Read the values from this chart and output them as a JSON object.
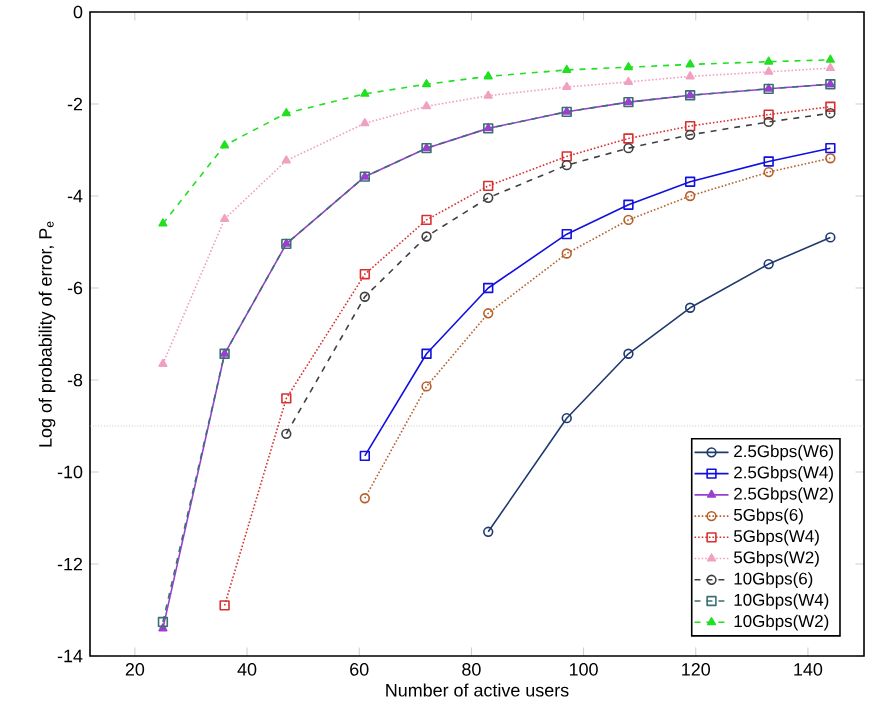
{
  "chart_data": {
    "type": "line",
    "xlabel": "Number of active users",
    "ylabel": "Log of probability of error, P$_{e}$",
    "x": [
      25,
      36,
      47,
      61,
      72,
      83,
      97,
      108,
      119,
      133,
      144
    ],
    "xlim": [
      12,
      150
    ],
    "xticks": [
      20,
      40,
      60,
      80,
      100,
      120,
      140
    ],
    "ylim": [
      -14,
      0
    ],
    "yticks": [
      -14,
      -12,
      -10,
      -8,
      -6,
      -4,
      -2,
      0
    ],
    "legend": "bottom right",
    "ref_lines": [
      {
        "axis": "y",
        "value": -9,
        "color": "#aaaaaa",
        "line_style": "dotted"
      }
    ],
    "series": [
      {
        "name": "2.5Gbps(W6)",
        "color": "#1f3a6e",
        "marker": "circle",
        "line_style": "solid",
        "values": [
          null,
          null,
          null,
          null,
          null,
          -11.3,
          -8.83,
          -7.43,
          -6.43,
          -5.48,
          -4.9
        ]
      },
      {
        "name": "2.5Gbps(W4)",
        "color": "#1010e0",
        "marker": "square",
        "line_style": "solid",
        "values": [
          null,
          null,
          null,
          -9.65,
          -7.43,
          -6.0,
          -4.83,
          -4.19,
          -3.69,
          -3.25,
          -2.96
        ]
      },
      {
        "name": "2.5Gbps(W2)",
        "color": "#9a40d0",
        "marker": "triangle",
        "line_style": "solid",
        "values": [
          -13.4,
          -7.43,
          -5.04,
          -3.58,
          -2.96,
          -2.53,
          -2.17,
          -1.96,
          -1.81,
          -1.67,
          -1.57
        ]
      },
      {
        "name": "5Gbps(6)",
        "color": "#b5602a",
        "marker": "circle",
        "line_style": "dotted",
        "values": [
          null,
          null,
          null,
          -10.57,
          -8.14,
          -6.55,
          -5.25,
          -4.52,
          -4.0,
          -3.48,
          -3.18
        ]
      },
      {
        "name": "5Gbps(W4)",
        "color": "#d83030",
        "marker": "square",
        "line_style": "dotted",
        "values": [
          null,
          -12.9,
          -8.4,
          -5.7,
          -4.52,
          -3.78,
          -3.14,
          -2.75,
          -2.48,
          -2.23,
          -2.06
        ]
      },
      {
        "name": "5Gbps(W2)",
        "color": "#f0a0c0",
        "marker": "triangle",
        "line_style": "dotted",
        "values": [
          -7.65,
          -4.5,
          -3.23,
          -2.42,
          -2.05,
          -1.82,
          -1.63,
          -1.52,
          -1.4,
          -1.3,
          -1.22
        ]
      },
      {
        "name": "10Gbps(6)",
        "color": "#404040",
        "marker": "circle",
        "line_style": "dashed",
        "values": [
          null,
          null,
          -9.17,
          -6.19,
          -4.88,
          -4.04,
          -3.33,
          -2.96,
          -2.67,
          -2.39,
          -2.2
        ]
      },
      {
        "name": "10Gbps(W4)",
        "color": "#3a7070",
        "marker": "square",
        "line_style": "dashed",
        "values": [
          -13.26,
          -7.43,
          -5.04,
          -3.58,
          -2.96,
          -2.53,
          -2.17,
          -1.96,
          -1.81,
          -1.67,
          -1.57
        ]
      },
      {
        "name": "10Gbps(W2)",
        "color": "#20e020",
        "marker": "triangle",
        "line_style": "dashed",
        "values": [
          -4.6,
          -2.9,
          -2.2,
          -1.78,
          -1.57,
          -1.4,
          -1.26,
          -1.2,
          -1.14,
          -1.08,
          -1.04
        ]
      }
    ]
  }
}
